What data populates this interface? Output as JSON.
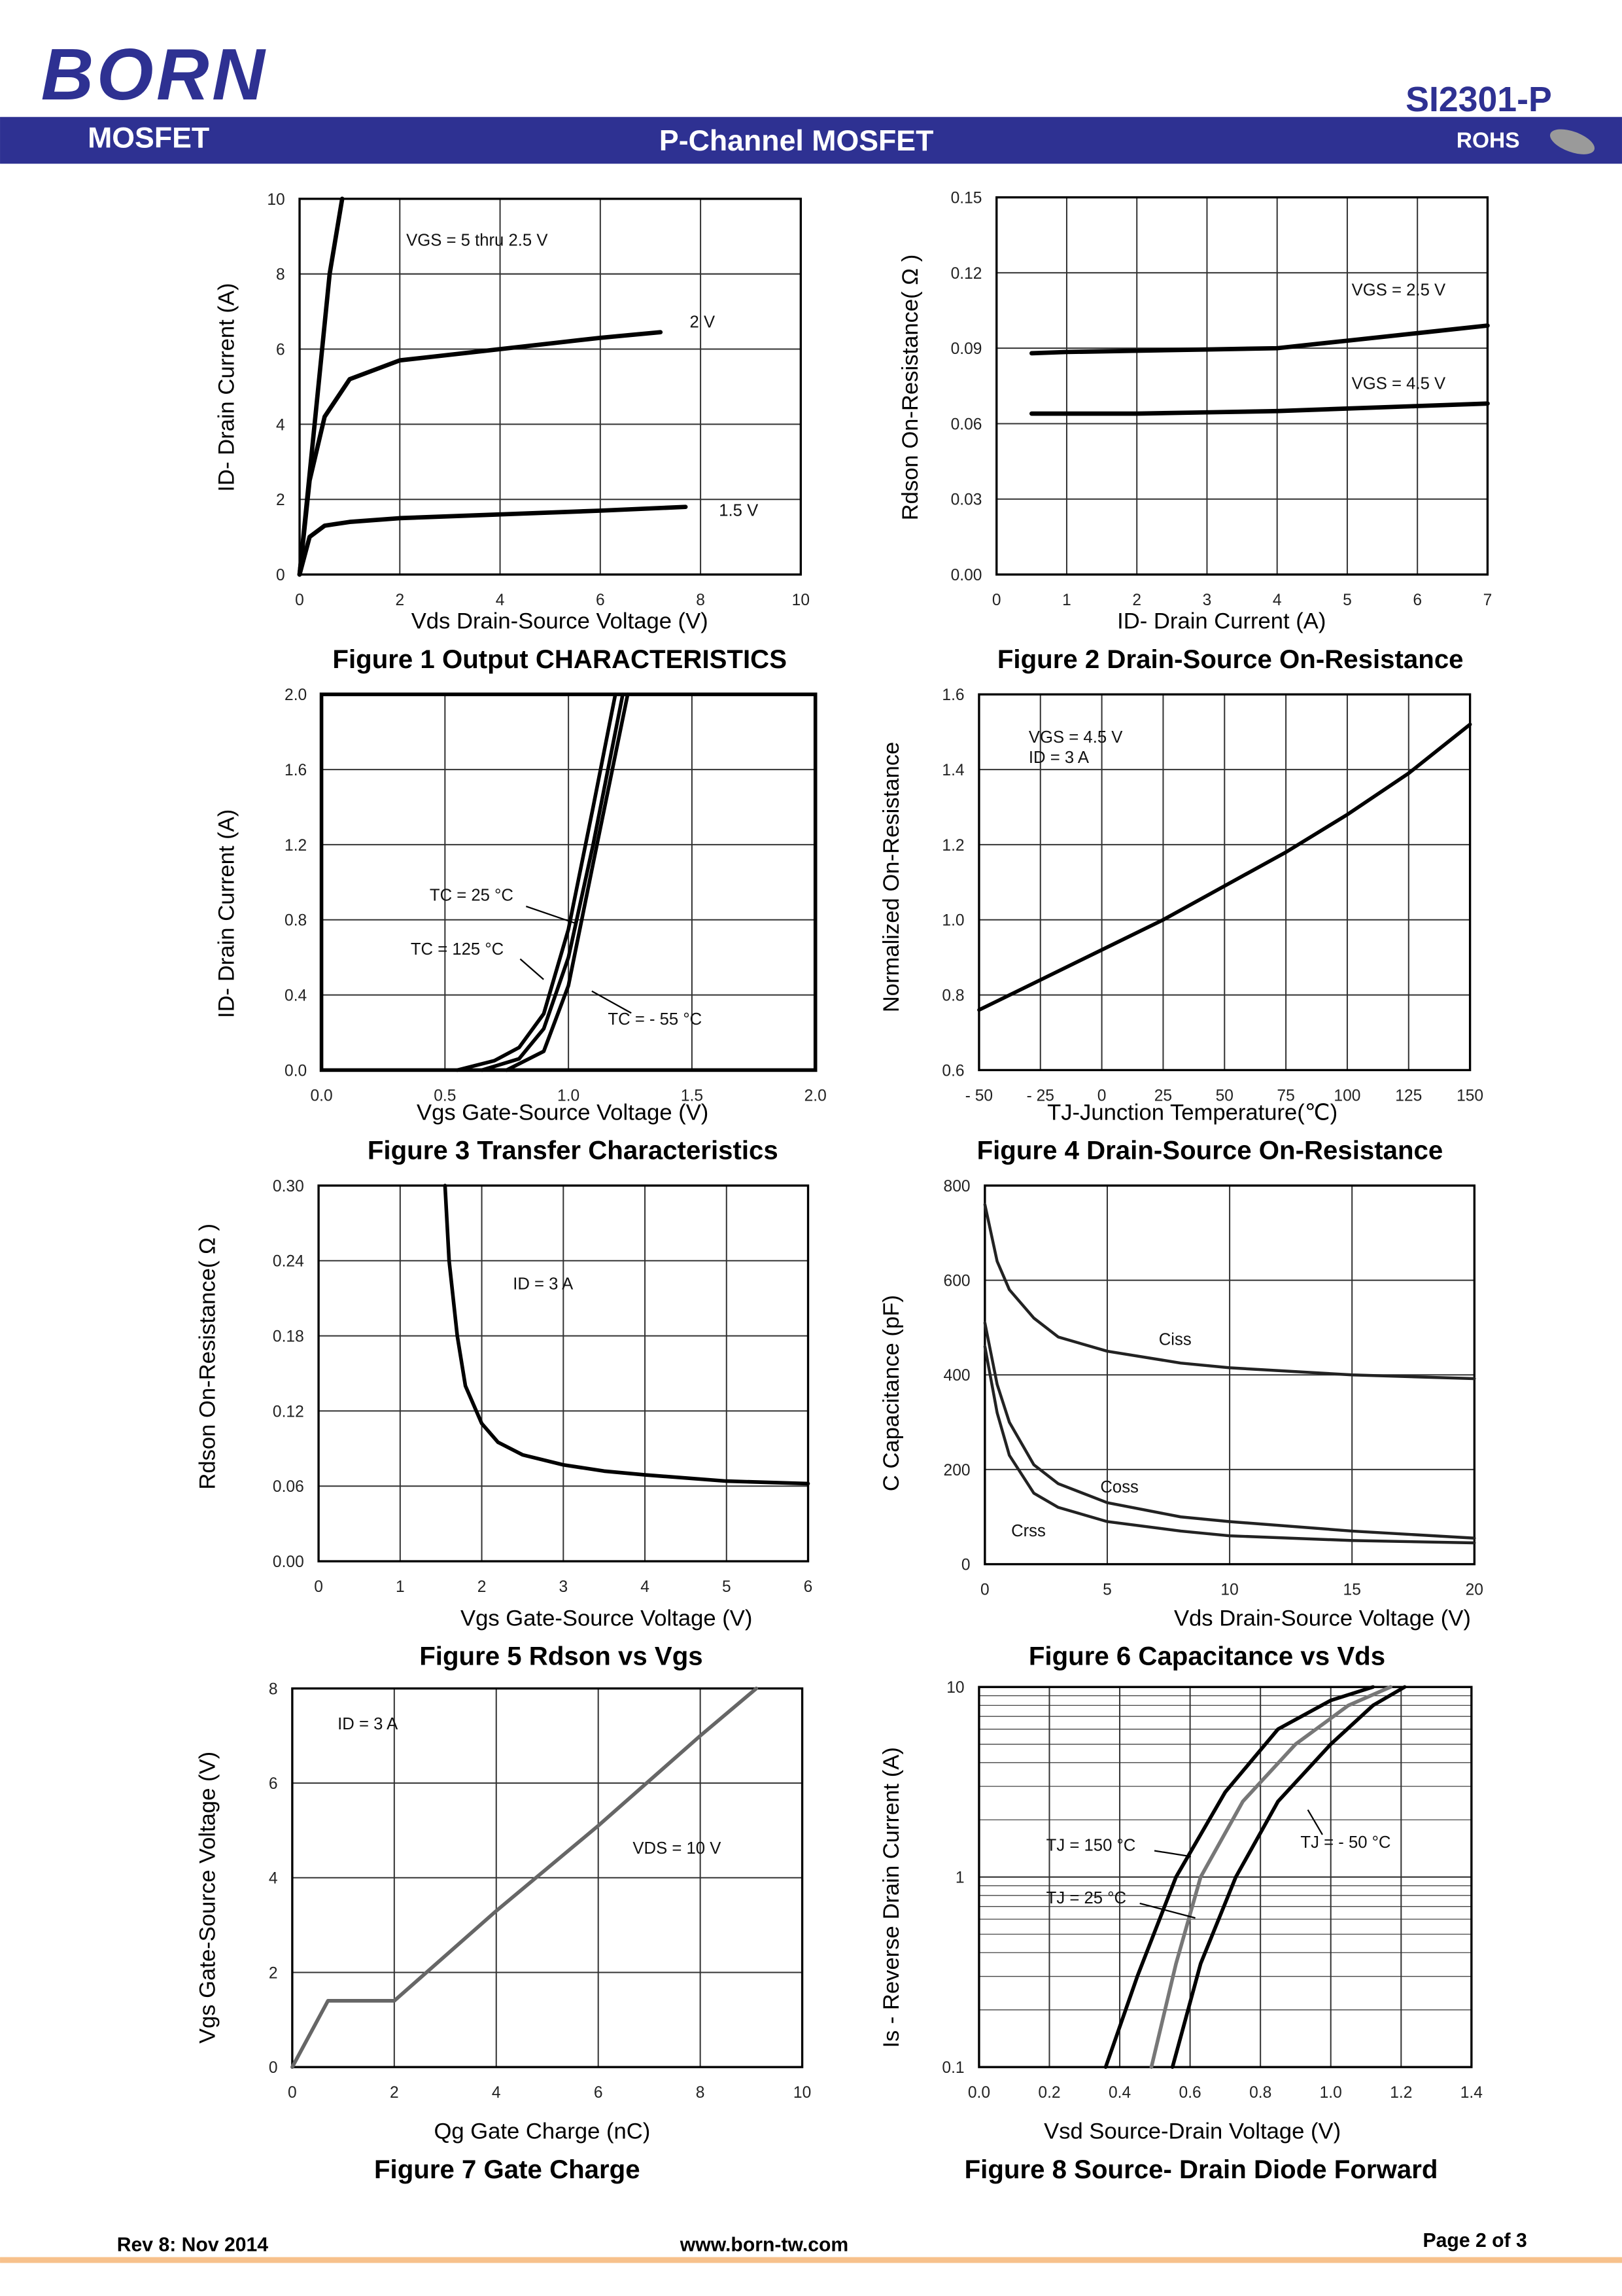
{
  "header": {
    "logo": "BORN",
    "part": "SI2301-P",
    "left": "MOSFET",
    "center": "P-Channel MOSFET",
    "right": "ROHS"
  },
  "footer": {
    "rev": "Rev 8: Nov 2014",
    "url": "www.born-tw.com",
    "page": "Page 2 of 3"
  },
  "chart_data": [
    {
      "type": "line",
      "title": "Figure 1 Output CHARACTERISTICS",
      "xlabel": "Vds Drain-Source Voltage (V)",
      "ylabel": "ID- Drain Current (A)",
      "xlim": [
        0,
        10
      ],
      "xticks": [
        0,
        2,
        4,
        6,
        8,
        10
      ],
      "ylim": [
        0,
        10
      ],
      "yticks": [
        0,
        2,
        4,
        6,
        8,
        10
      ],
      "grid": true,
      "series": [
        {
          "name": "VGS = 5 thru 2.5 V",
          "color": "#000000",
          "x": [
            0,
            0.3,
            0.6,
            0.85
          ],
          "values": [
            0,
            4,
            8,
            10
          ]
        },
        {
          "name": "2 V",
          "color": "#000000",
          "x": [
            0,
            0.2,
            0.5,
            1,
            2,
            3,
            4,
            5,
            6,
            7.2
          ],
          "values": [
            0,
            2.5,
            4.2,
            5.2,
            5.7,
            5.85,
            6,
            6.15,
            6.3,
            6.45
          ]
        },
        {
          "name": "1.5 V",
          "color": "#000000",
          "x": [
            0,
            0.2,
            0.5,
            1,
            2,
            4,
            6,
            7.7
          ],
          "values": [
            0,
            1,
            1.3,
            1.4,
            1.5,
            1.6,
            1.7,
            1.8
          ]
        }
      ]
    },
    {
      "type": "line",
      "title": "Figure 2 Drain-Source On-Resistance",
      "xlabel": "ID- Drain Current (A)",
      "ylabel": "Rdson On-Resistance( Ω )",
      "xlim": [
        0,
        7
      ],
      "xticks": [
        0,
        1,
        2,
        3,
        4,
        5,
        6,
        7
      ],
      "ylim": [
        0,
        0.15
      ],
      "yticks": [
        {
          "value": 0,
          "label": "0.00"
        },
        0.03,
        0.06,
        0.09,
        0.12,
        0.15
      ],
      "grid": true,
      "series": [
        {
          "name": "VGS = 2.5 V",
          "color": "#000000",
          "x": [
            0.5,
            1,
            2,
            3,
            4,
            5,
            6,
            7
          ],
          "values": [
            0.088,
            0.0885,
            0.089,
            0.0895,
            0.09,
            0.093,
            0.096,
            0.099
          ]
        },
        {
          "name": "VGS = 4.5 V",
          "color": "#000000",
          "x": [
            0.5,
            1,
            2,
            3,
            4,
            5,
            6,
            7
          ],
          "values": [
            0.064,
            0.064,
            0.064,
            0.0645,
            0.065,
            0.066,
            0.067,
            0.068
          ]
        }
      ]
    },
    {
      "type": "line",
      "title": "Figure 3 Transfer Characteristics",
      "xlabel": "Vgs Gate-Source Voltage (V)",
      "ylabel": "ID- Drain Current (A)",
      "xlim": [
        0,
        2
      ],
      "xticks": [
        {
          "value": 0,
          "label": "0.0"
        },
        0.5,
        {
          "value": 1,
          "label": "1.0"
        },
        1.5,
        {
          "value": 2,
          "label": "2.0"
        }
      ],
      "ylim": [
        0,
        2
      ],
      "yticks": [
        {
          "value": 0,
          "label": "0.0"
        },
        0.4,
        0.8,
        1.2,
        1.6,
        {
          "value": 2,
          "label": "2.0"
        }
      ],
      "grid": true,
      "series": [
        {
          "name": "TC = 125 °C",
          "color": "#000000",
          "x": [
            0.55,
            0.7,
            0.8,
            0.9,
            1,
            1.1,
            1.19
          ],
          "values": [
            0,
            0.05,
            0.12,
            0.3,
            0.75,
            1.4,
            2
          ]
        },
        {
          "name": "TC = 25 °C",
          "color": "#000000",
          "x": [
            0.65,
            0.8,
            0.9,
            1,
            1.1,
            1.22
          ],
          "values": [
            0,
            0.06,
            0.22,
            0.6,
            1.2,
            2
          ]
        },
        {
          "name": "TC = - 55 °C",
          "color": "#000000",
          "x": [
            0.75,
            0.9,
            1,
            1.1,
            1.24
          ],
          "values": [
            0,
            0.1,
            0.45,
            1.1,
            2
          ]
        }
      ]
    },
    {
      "type": "line",
      "title": "Figure 4 Drain-Source On-Resistance",
      "xlabel": "TJ-Junction Temperature(℃)",
      "ylabel": "Normalized On-Resistance",
      "xlim": [
        -50,
        150
      ],
      "xticks": [
        {
          "value": -50,
          "label": "- 50"
        },
        {
          "value": -25,
          "label": "- 25"
        },
        0,
        25,
        50,
        75,
        100,
        125,
        150
      ],
      "ylim": [
        0.6,
        1.6
      ],
      "yticks": [
        0.6,
        0.8,
        {
          "value": 1,
          "label": "1.0"
        },
        1.2,
        1.4,
        1.6
      ],
      "grid": true,
      "color": "#000000",
      "x": [
        -50,
        -25,
        0,
        25,
        50,
        75,
        100,
        125,
        150
      ],
      "values": [
        0.76,
        0.84,
        0.92,
        1,
        1.09,
        1.18,
        1.28,
        1.39,
        1.52
      ],
      "annotations": [
        "VGS = 4.5 V",
        "ID = 3 A"
      ]
    },
    {
      "type": "line",
      "title": "Figure 5 Rdson vs Vgs",
      "xlabel": "Vgs Gate-Source Voltage (V)",
      "ylabel": "Rdson On-Resistance( Ω )",
      "xlim": [
        0,
        6
      ],
      "xticks": [
        0,
        1,
        2,
        3,
        4,
        5,
        6
      ],
      "ylim": [
        0,
        0.3
      ],
      "yticks": [
        {
          "value": 0,
          "label": "0.00"
        },
        0.06,
        0.12,
        0.18,
        0.24,
        {
          "value": 0.3,
          "label": "0.30"
        }
      ],
      "grid": true,
      "color": "#000000",
      "x": [
        1.55,
        1.6,
        1.7,
        1.8,
        2,
        2.2,
        2.5,
        3,
        3.5,
        4,
        5,
        6
      ],
      "values": [
        0.3,
        0.24,
        0.18,
        0.14,
        0.11,
        0.095,
        0.085,
        0.077,
        0.072,
        0.069,
        0.064,
        0.062
      ],
      "annotations": [
        "ID = 3 A"
      ]
    },
    {
      "type": "line",
      "title": "Figure 6 Capacitance vs Vds",
      "xlabel": "Vds Drain-Source Voltage (V)",
      "ylabel": "C Capacitance (pF)",
      "xlim": [
        0,
        20
      ],
      "xticks": [
        0,
        5,
        10,
        15,
        20
      ],
      "ylim": [
        0,
        800
      ],
      "yticks": [
        0,
        200,
        400,
        600,
        800
      ],
      "grid": true,
      "series": [
        {
          "name": "Ciss",
          "color": "#222222",
          "x": [
            0,
            0.5,
            1,
            2,
            3,
            5,
            8,
            10,
            15,
            20
          ],
          "values": [
            760,
            640,
            580,
            520,
            480,
            450,
            425,
            415,
            400,
            392
          ]
        },
        {
          "name": "Coss",
          "color": "#222222",
          "x": [
            0,
            0.5,
            1,
            2,
            3,
            5,
            8,
            10,
            15,
            20
          ],
          "values": [
            510,
            380,
            300,
            210,
            170,
            130,
            100,
            90,
            70,
            55
          ]
        },
        {
          "name": "Crss",
          "color": "#222222",
          "x": [
            0,
            0.5,
            1,
            2,
            3,
            5,
            8,
            10,
            15,
            20
          ],
          "values": [
            460,
            320,
            230,
            150,
            120,
            90,
            70,
            60,
            50,
            45
          ]
        }
      ]
    },
    {
      "type": "line",
      "title": "Figure 7 Gate Charge",
      "xlabel": "Qg Gate Charge (nC)",
      "ylabel": "Vgs Gate-Source Voltage (V)",
      "xlim": [
        0,
        10
      ],
      "xticks": [
        0,
        2,
        4,
        6,
        8,
        10
      ],
      "ylim": [
        0,
        8
      ],
      "yticks": [
        0,
        2,
        4,
        6,
        8
      ],
      "grid": true,
      "color": "#666666",
      "x": [
        0,
        0.7,
        2,
        4,
        6,
        8,
        9.1
      ],
      "values": [
        0,
        1.4,
        1.4,
        3.3,
        5.1,
        7,
        8
      ],
      "annotations": [
        "ID = 3 A",
        "VDS = 10 V"
      ]
    },
    {
      "type": "line",
      "title": "Figure 8 Source- Drain Diode Forward",
      "xlabel": "Vsd Source-Drain Voltage (V)",
      "ylabel": "Is - Reverse Drain Current (A)",
      "xlim": [
        0,
        1.4
      ],
      "xticks": [
        {
          "value": 0,
          "label": "0.0"
        },
        0.2,
        0.4,
        0.6,
        0.8,
        {
          "value": 1,
          "label": "1.0"
        },
        1.2,
        1.4
      ],
      "ylim": [
        0.1,
        10
      ],
      "yticks": [
        0.1,
        1,
        10
      ],
      "ylog": true,
      "grid": true,
      "minor_yticks": [
        0.2,
        0.3,
        0.4,
        0.5,
        0.6,
        0.7,
        0.8,
        0.9,
        2,
        3,
        4,
        5,
        6,
        7,
        8,
        9
      ],
      "series": [
        {
          "name": "TJ = 150 °C",
          "color": "#000000",
          "x": [
            0.36,
            0.45,
            0.56,
            0.7,
            0.85,
            1,
            1.12
          ],
          "values": [
            0.1,
            0.3,
            1,
            2.8,
            6,
            8.5,
            10
          ]
        },
        {
          "name": "TJ = 25 °C",
          "color": "#777777",
          "x": [
            0.49,
            0.56,
            0.63,
            0.75,
            0.9,
            1.05,
            1.17
          ],
          "values": [
            0.1,
            0.35,
            1,
            2.5,
            5,
            8,
            10
          ]
        },
        {
          "name": "TJ = - 50 °C",
          "color": "#000000",
          "x": [
            0.55,
            0.63,
            0.73,
            0.85,
            1,
            1.12,
            1.21
          ],
          "values": [
            0.1,
            0.35,
            1,
            2.5,
            5,
            8,
            10
          ]
        }
      ]
    }
  ]
}
